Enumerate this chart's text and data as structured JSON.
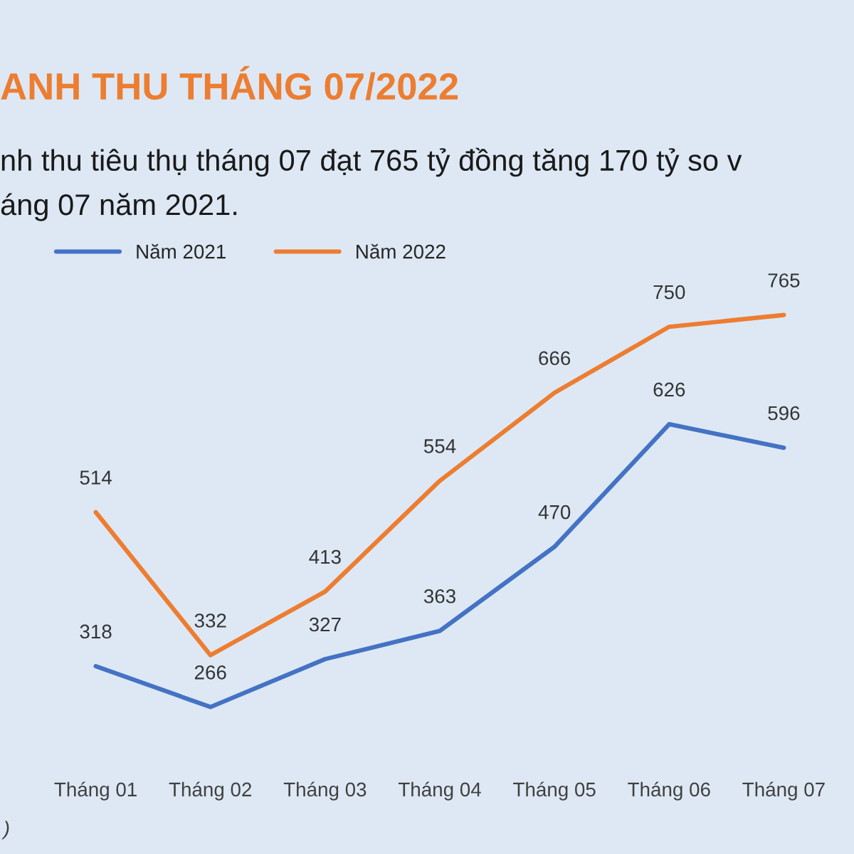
{
  "chart_data": {
    "type": "line",
    "title": "ANH THU THÁNG 07/2022",
    "subtitle": "nh thu tiêu thụ tháng 07 đạt 765 tỷ đồng tăng 170 tỷ so v\náng 07 năm 2021.",
    "categories": [
      "Tháng 01",
      "Tháng 02",
      "Tháng 03",
      "Tháng 04",
      "Tháng 05",
      "Tháng 06",
      "Tháng 07"
    ],
    "series": [
      {
        "name": "Năm 2021",
        "color": "#4472c4",
        "values": [
          318,
          266,
          327,
          363,
          470,
          626,
          596
        ]
      },
      {
        "name": "Năm 2022",
        "color": "#ed7d31",
        "values": [
          514,
          332,
          413,
          554,
          666,
          750,
          765
        ]
      }
    ],
    "data_labels": true,
    "legend": "top left",
    "grid": false,
    "marker": "none",
    "line_style": "solid",
    "annotations": [
      ")"
    ]
  }
}
